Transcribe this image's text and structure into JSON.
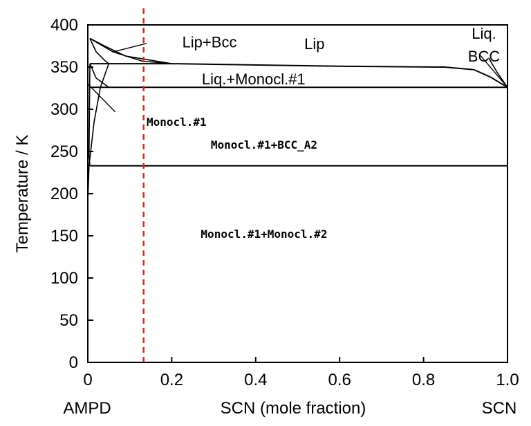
{
  "chart_data": {
    "type": "phase-diagram",
    "title": "",
    "xlabel": "SCN (mole fraction)",
    "ylabel": "Temperature / K",
    "xlim": [
      0,
      1.0
    ],
    "ylim": [
      0,
      400
    ],
    "xticks": [
      0,
      0.2,
      0.4,
      0.6,
      0.8,
      1.0
    ],
    "xtick_labels": [
      "0",
      "0.2",
      "0.4",
      "0.6",
      "0.8",
      "1.0"
    ],
    "yticks": [
      0,
      50,
      100,
      150,
      200,
      250,
      300,
      350,
      400
    ],
    "ytick_labels": [
      "0",
      "50",
      "100",
      "150",
      "200",
      "250",
      "300",
      "350",
      "400"
    ],
    "x_end_labels": {
      "left": "AMPD",
      "right": "SCN"
    },
    "grid": false,
    "marker_line": {
      "x": 0.133,
      "color": "#e0261b",
      "style": "dashed"
    },
    "phase_boundaries": [
      {
        "name": "eutectoid-upper",
        "points": [
          [
            0.005,
            326
          ],
          [
            1.0,
            326
          ]
        ]
      },
      {
        "name": "eutectoid-lower",
        "points": [
          [
            0.005,
            233
          ],
          [
            1.0,
            233
          ]
        ]
      },
      {
        "name": "three-phase",
        "points": [
          [
            0.005,
            354
          ],
          [
            0.2,
            354
          ],
          [
            0.6,
            351
          ],
          [
            0.85,
            350
          ],
          [
            0.92,
            347
          ],
          [
            0.96,
            338
          ],
          [
            1.0,
            326
          ]
        ]
      },
      {
        "name": "liquidus-left",
        "points": [
          [
            0.005,
            384
          ],
          [
            0.06,
            368
          ],
          [
            0.13,
            357
          ],
          [
            0.2,
            354
          ]
        ]
      },
      {
        "name": "solidus-left",
        "points": [
          [
            0.005,
            384
          ],
          [
            0.04,
            375
          ],
          [
            0.09,
            363
          ],
          [
            0.2,
            354
          ]
        ]
      },
      {
        "name": "bcc-solvus-left",
        "points": [
          [
            0.005,
            384
          ],
          [
            0.02,
            368
          ],
          [
            0.04,
            358
          ],
          [
            0.05,
            354
          ]
        ]
      },
      {
        "name": "monocl1-solvus-upper",
        "points": [
          [
            0.005,
            354
          ],
          [
            0.02,
            337
          ],
          [
            0.05,
            326
          ]
        ]
      },
      {
        "name": "monocl1-solvus-lower",
        "points": [
          [
            0.0,
            190
          ],
          [
            0.003,
            233
          ],
          [
            0.015,
            285
          ],
          [
            0.03,
            326
          ],
          [
            0.05,
            354
          ]
        ]
      },
      {
        "name": "left-edge-small",
        "points": [
          [
            0.005,
            354
          ],
          [
            0.003,
            245
          ],
          [
            0.005,
            233
          ]
        ]
      },
      {
        "name": "liquidus-right",
        "points": [
          [
            0.955,
            361
          ],
          [
            0.975,
            344
          ],
          [
            1.0,
            326
          ]
        ]
      }
    ],
    "region_labels": [
      {
        "text": "Lip+Bcc",
        "x": 0.225,
        "y": 380,
        "style": "sans"
      },
      {
        "text": "Lip",
        "x": 0.54,
        "y": 378,
        "style": "sans"
      },
      {
        "text": "Liq.",
        "x": 0.944,
        "y": 390,
        "style": "sans"
      },
      {
        "text": "BCC",
        "x": 0.944,
        "y": 363,
        "style": "sans"
      },
      {
        "text": "Liq.+Monocl.#1",
        "x": 0.395,
        "y": 336,
        "style": "sans"
      },
      {
        "text": "Monocl.#1",
        "x": 0.14,
        "y": 287,
        "style": "mono"
      },
      {
        "text": "Monocl.#1+BCC_A2",
        "x": 0.42,
        "y": 260,
        "style": "mono"
      },
      {
        "text": "Monocl.#1+Monocl.#2",
        "x": 0.42,
        "y": 154,
        "style": "mono"
      }
    ],
    "pointers": [
      {
        "from": [
          0.14,
          378
        ],
        "to": [
          0.06,
          368
        ]
      },
      {
        "from": [
          0.935,
          364
        ],
        "to": [
          1.0,
          326
        ]
      },
      {
        "from": [
          0.065,
          297
        ],
        "to": [
          0.0,
          330
        ]
      }
    ]
  }
}
